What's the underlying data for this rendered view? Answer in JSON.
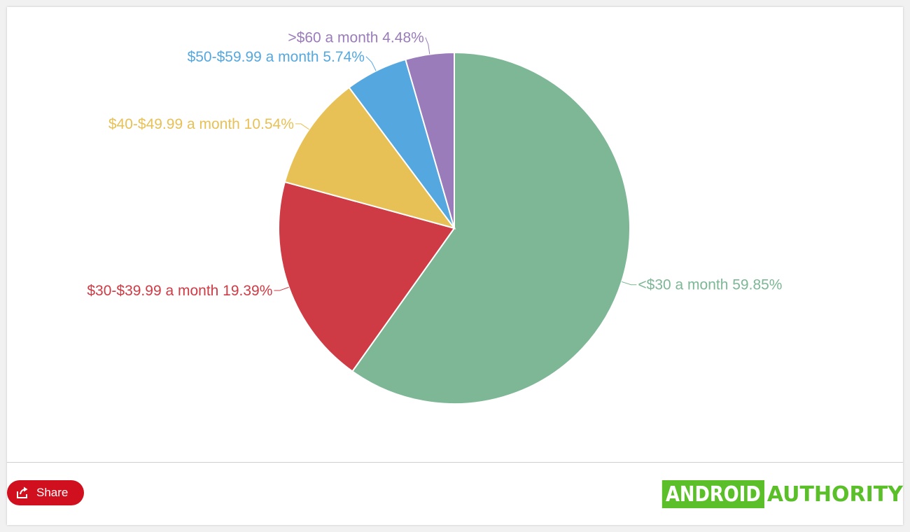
{
  "chart_data": {
    "type": "pie",
    "categories": [
      "<$30 a month",
      "$30-$39.99 a month",
      "$40-$49.99 a month",
      "$50-$59.99 a month",
      ">$60 a month"
    ],
    "values": [
      59.85,
      19.39,
      10.54,
      5.74,
      4.48
    ],
    "labels": [
      "<$30 a month 59.85%",
      "$30-$39.99 a month 19.39%",
      "$40-$49.99 a month 10.54%",
      "$50-$59.99 a month 5.74%",
      ">$60 a month 4.48%"
    ],
    "colors": [
      "#7db795",
      "#cf3b44",
      "#e8c156",
      "#55a8df",
      "#9a7cbb"
    ],
    "start_angle": "12 o'clock",
    "direction": "clockwise"
  },
  "footer": {
    "share_label": "Share",
    "share_icon": "share-icon",
    "logo_part_a": "ANDROID",
    "logo_part_b": "AUTHORITY",
    "share_color": "#d0101e",
    "logo_color": "#5bbf29"
  }
}
